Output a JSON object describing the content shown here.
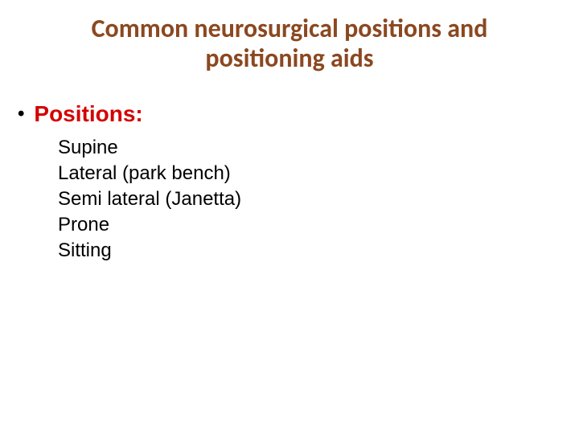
{
  "title_color": "#8b4820",
  "section_color": "#d40000",
  "item_color": "#000000",
  "title_line1": "Common neurosurgical positions and",
  "title_line2": "positioning aids",
  "section_bullet": "•",
  "section_label": "Positions:",
  "items": [
    "Supine",
    "Lateral (park bench)",
    "Semi lateral (Janetta)",
    "Prone",
    "Sitting"
  ]
}
